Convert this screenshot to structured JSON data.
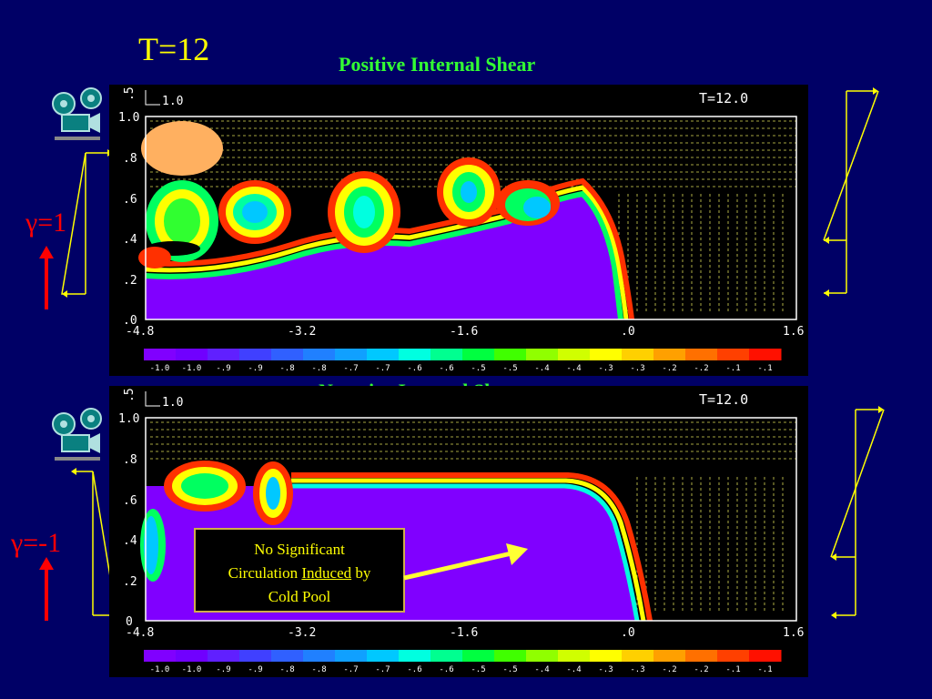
{
  "slide": {
    "title": "T=12"
  },
  "panels": [
    {
      "title": "Positive Internal Shear",
      "time_label": "T=12.0",
      "scale_labels": [
        ".5",
        "1.0"
      ],
      "y_ticks": [
        "1.0",
        ".8",
        ".6",
        ".4",
        ".2",
        ".0"
      ],
      "x_ticks": [
        "-4.8",
        "-3.2",
        "-1.6",
        ".0",
        "1.6"
      ],
      "gamma_label": "γ=1"
    },
    {
      "title": "Negative Internal Shear",
      "time_label": "T=12.0",
      "scale_labels": [
        ".5",
        "1.0"
      ],
      "y_ticks": [
        "1.0",
        ".8",
        ".6",
        ".4",
        ".2",
        "0"
      ],
      "x_ticks": [
        "-4.8",
        "-3.2",
        "-1.6",
        ".0",
        "1.6"
      ],
      "gamma_label": "γ=-1"
    }
  ],
  "colorbar": {
    "labels": [
      "-1.0",
      "-1.0",
      "-.9",
      "-.9",
      "-.8",
      "-.8",
      "-.7",
      "-.7",
      "-.6",
      "-.6",
      "-.5",
      "-.5",
      "-.4",
      "-.4",
      "-.3",
      "-.3",
      "-.2",
      "-.2",
      "-.1",
      "-.1"
    ],
    "colors": [
      "#8000ff",
      "#7000ff",
      "#6020ff",
      "#4040ff",
      "#3060ff",
      "#2080ff",
      "#10a0ff",
      "#00c8ff",
      "#00ffe0",
      "#00ff90",
      "#00ff40",
      "#40ff00",
      "#90ff00",
      "#d0ff00",
      "#ffff00",
      "#ffd000",
      "#ffa000",
      "#ff7000",
      "#ff4000",
      "#ff1000"
    ]
  },
  "annotation": {
    "line1": "No Significant",
    "line2_pre": "Circulation ",
    "line2_underlined": "Induced",
    "line2_post": " by",
    "line3": "Cold Pool"
  },
  "colors": {
    "background": "#000066",
    "title": "#ffff00",
    "panel_title": "#33ff33",
    "gamma": "#ff0000",
    "profile_line": "#ffff00",
    "arrow": "#ffff33"
  },
  "icons": [
    "projector-icon",
    "projector-icon"
  ]
}
